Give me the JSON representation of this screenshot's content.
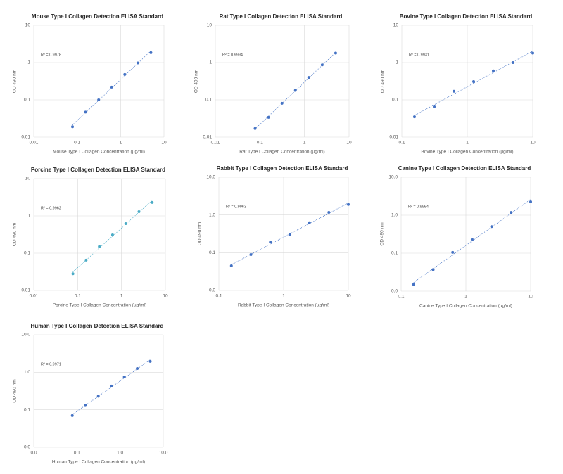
{
  "chart_data": [
    {
      "type": "scatter",
      "title": "Mouse Type I Collagen Detection ELISA Standard",
      "x_label": "Mouse Type I Collagen Concentration (µg/ml)",
      "y_label": "OD 490 nm",
      "annotation": "R² = 0.9978",
      "x": [
        0.078,
        0.156,
        0.3125,
        0.625,
        1.25,
        2.5,
        5
      ],
      "values": [
        0.019,
        0.047,
        0.1,
        0.22,
        0.48,
        0.98,
        1.85
      ],
      "color": "#4472c4",
      "xlim": [
        0.01,
        10
      ],
      "xticks": [
        0.01,
        0.1,
        1,
        10
      ],
      "ylim": [
        0.01,
        10
      ],
      "yticks": [
        0.01,
        0.1,
        1,
        10
      ],
      "log_x": true,
      "log_y": true,
      "grid": true,
      "trendline": true
    },
    {
      "type": "scatter",
      "title": "Rat Type I Collagen Detection ELISA Standard",
      "x_label": "Rat Type I Collagen Concentration (µg/ml)",
      "y_label": "OD 490 nm",
      "annotation": "R² = 0.9994",
      "x": [
        0.078,
        0.156,
        0.3125,
        0.625,
        1.25,
        2.5,
        5
      ],
      "values": [
        0.017,
        0.034,
        0.081,
        0.18,
        0.4,
        0.87,
        1.8
      ],
      "color": "#4472c4",
      "xlim": [
        0.01,
        10
      ],
      "xticks": [
        0.01,
        0.1,
        1,
        10
      ],
      "ylim": [
        0.01,
        10
      ],
      "yticks": [
        0.01,
        0.1,
        1,
        10
      ],
      "log_x": true,
      "log_y": true,
      "grid": true,
      "trendline": true
    },
    {
      "type": "scatter",
      "title": "Bovine Type I Collagen Detection ELISA Standard",
      "x_label": "Bovine Type I Collagen Concentration (µg/ml)",
      "y_label": "OD 490 nm",
      "annotation": "R² = 0.9931",
      "x": [
        0.156,
        0.3125,
        0.625,
        1.25,
        2.5,
        5,
        10
      ],
      "values": [
        0.035,
        0.065,
        0.17,
        0.31,
        0.6,
        1.0,
        1.8
      ],
      "color": "#4472c4",
      "xlim": [
        0.1,
        10
      ],
      "xticks": [
        0.1,
        1,
        10
      ],
      "ylim": [
        0.01,
        10
      ],
      "yticks": [
        0.01,
        0.1,
        1,
        10
      ],
      "log_x": true,
      "log_y": true,
      "grid": true,
      "trendline": true
    },
    {
      "type": "scatter",
      "title": "Porcine Type I Collagen Detection ELISA Standard",
      "x_label": "Porcine Type I Collagen Concentration (µg/ml)",
      "y_label": "OD 490 nm",
      "annotation": "R² = 0.9962",
      "x": [
        0.078,
        0.156,
        0.3125,
        0.625,
        1.25,
        2.5,
        5
      ],
      "values": [
        0.028,
        0.065,
        0.15,
        0.31,
        0.62,
        1.3,
        2.3
      ],
      "color": "#4bacc6",
      "xlim": [
        0.01,
        10
      ],
      "xticks": [
        0.01,
        0.1,
        1,
        10
      ],
      "ylim": [
        0.01,
        10
      ],
      "yticks": [
        0.01,
        0.1,
        1,
        10
      ],
      "log_x": true,
      "log_y": true,
      "grid": true,
      "trendline": true
    },
    {
      "type": "scatter",
      "title": "Rabbit Type I Collagen Detection ELISA Standard",
      "x_label": "Rabbit Type I Collagen Concentration (µg/ml)",
      "y_label": "OD 490 nm",
      "annotation": "R² = 0.9963",
      "x": [
        0.156,
        0.3125,
        0.625,
        1.25,
        2.5,
        5,
        10
      ],
      "values": [
        0.045,
        0.089,
        0.19,
        0.3,
        0.62,
        1.17,
        1.9
      ],
      "color": "#4472c4",
      "xlim": [
        0.1,
        10
      ],
      "xticks": [
        0.1,
        1,
        10
      ],
      "ylim": [
        0.01,
        10
      ],
      "yticks": [
        {
          "value": 0.01,
          "label": "0.0"
        },
        0.1,
        {
          "value": 1,
          "label": "1.0"
        },
        {
          "value": 10,
          "label": "10.0"
        }
      ],
      "log_x": true,
      "log_y": true,
      "grid": true,
      "trendline": true
    },
    {
      "type": "scatter",
      "title": "Canine Type I Collagen Detection ELISA Standard",
      "x_label": "Canine Type I Collagen Concentration (µg/ml)",
      "y_label": "OD 490 nm",
      "annotation": "R² = 0.9964",
      "x": [
        0.156,
        0.3125,
        0.625,
        1.25,
        2.5,
        5,
        10
      ],
      "values": [
        0.015,
        0.037,
        0.105,
        0.23,
        0.5,
        1.18,
        2.25
      ],
      "color": "#4472c4",
      "xlim": [
        0.1,
        10
      ],
      "xticks": [
        0.1,
        1,
        10
      ],
      "ylim": [
        0.01,
        10
      ],
      "yticks": [
        {
          "value": 0.01,
          "label": "0.0"
        },
        0.1,
        {
          "value": 1,
          "label": "1.0"
        },
        {
          "value": 10,
          "label": "10.0"
        }
      ],
      "log_x": true,
      "log_y": true,
      "grid": true,
      "trendline": true
    },
    {
      "type": "scatter",
      "title": "Human Type I Collagen Detection ELISA Standard",
      "x_label": "Human Type I Collagen Concentration (µg/ml)",
      "y_label": "OD 490 nm",
      "annotation": "R² = 0.9971",
      "x": [
        0.078,
        0.156,
        0.3125,
        0.625,
        1.25,
        2.5,
        5
      ],
      "values": [
        0.07,
        0.13,
        0.23,
        0.43,
        0.75,
        1.26,
        1.95
      ],
      "color": "#4472c4",
      "xlim": [
        0.01,
        10
      ],
      "xticks": [
        {
          "value": 0.01,
          "label": "0.0"
        },
        0.1,
        {
          "value": 1,
          "label": "1.0"
        },
        {
          "value": 10,
          "label": "10.0"
        }
      ],
      "ylim": [
        0.01,
        10
      ],
      "yticks": [
        {
          "value": 0.01,
          "label": "0.0"
        },
        0.1,
        {
          "value": 1,
          "label": "1.0"
        },
        {
          "value": 10,
          "label": "10.0"
        }
      ],
      "log_x": true,
      "log_y": true,
      "grid": true,
      "trendline": true
    }
  ]
}
